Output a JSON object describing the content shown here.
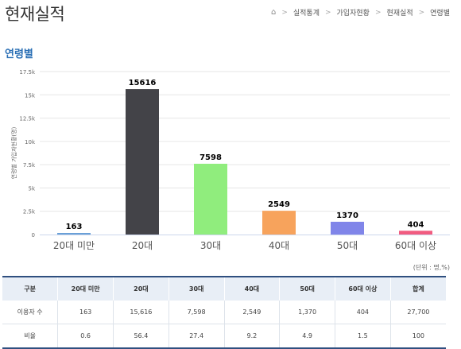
{
  "page_title": "현재실적",
  "breadcrumb": [
    "실적통계",
    "가입자현황",
    "현재실적",
    "연령별"
  ],
  "section_title": "연령별",
  "unit_note": "(단위 : 명,%)",
  "colors": {
    "accent": "#2a6fb5",
    "table_border": "#2f4f7f",
    "header_bg": "#e8eef6"
  },
  "chart_data": {
    "type": "bar",
    "ylabel": "연령별 가입자현황(명)",
    "categories": [
      "20대 미만",
      "20대",
      "30대",
      "40대",
      "50대",
      "60대 이상"
    ],
    "values": [
      163,
      15616,
      7598,
      2549,
      1370,
      404
    ],
    "colors": [
      "#6aa0d8",
      "#434348",
      "#90ed7d",
      "#f7a35c",
      "#8085e9",
      "#f15c80"
    ],
    "yticks": [
      "0",
      "2.5k",
      "5k",
      "7.5k",
      "10k",
      "12.5k",
      "15k",
      "17.5k"
    ],
    "ylim": [
      0,
      17500
    ],
    "grid": true
  },
  "table": {
    "headers": [
      "구분",
      "20대 미만",
      "20대",
      "30대",
      "40대",
      "50대",
      "60대 이상",
      "합계"
    ],
    "rows": [
      [
        "이용자 수",
        "163",
        "15,616",
        "7,598",
        "2,549",
        "1,370",
        "404",
        "27,700"
      ],
      [
        "비율",
        "0.6",
        "56.4",
        "27.4",
        "9.2",
        "4.9",
        "1.5",
        "100"
      ]
    ]
  }
}
